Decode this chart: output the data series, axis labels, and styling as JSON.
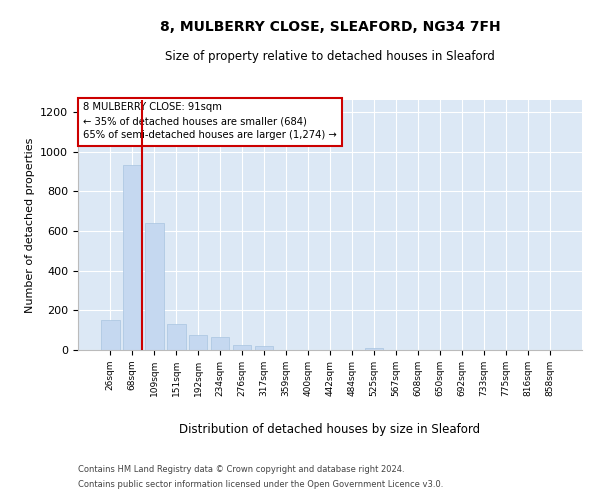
{
  "title_line1": "8, MULBERRY CLOSE, SLEAFORD, NG34 7FH",
  "title_line2": "Size of property relative to detached houses in Sleaford",
  "xlabel": "Distribution of detached houses by size in Sleaford",
  "ylabel": "Number of detached properties",
  "categories": [
    "26sqm",
    "68sqm",
    "109sqm",
    "151sqm",
    "192sqm",
    "234sqm",
    "276sqm",
    "317sqm",
    "359sqm",
    "400sqm",
    "442sqm",
    "484sqm",
    "525sqm",
    "567sqm",
    "608sqm",
    "650sqm",
    "692sqm",
    "733sqm",
    "775sqm",
    "816sqm",
    "858sqm"
  ],
  "values": [
    150,
    930,
    640,
    130,
    75,
    65,
    25,
    18,
    0,
    0,
    0,
    0,
    10,
    0,
    0,
    0,
    0,
    0,
    0,
    0,
    0
  ],
  "bar_color": "#c5d8f0",
  "bar_edge_color": "#a8c4e0",
  "vline_color": "#cc0000",
  "annotation_text": "8 MULBERRY CLOSE: 91sqm\n← 35% of detached houses are smaller (684)\n65% of semi-detached houses are larger (1,274) →",
  "annotation_box_color": "white",
  "annotation_box_edge": "#cc0000",
  "ylim": [
    0,
    1260
  ],
  "yticks": [
    0,
    200,
    400,
    600,
    800,
    1000,
    1200
  ],
  "footer_line1": "Contains HM Land Registry data © Crown copyright and database right 2024.",
  "footer_line2": "Contains public sector information licensed under the Open Government Licence v3.0.",
  "plot_bg_color": "#dce8f5",
  "vline_bar_index": 1.5
}
